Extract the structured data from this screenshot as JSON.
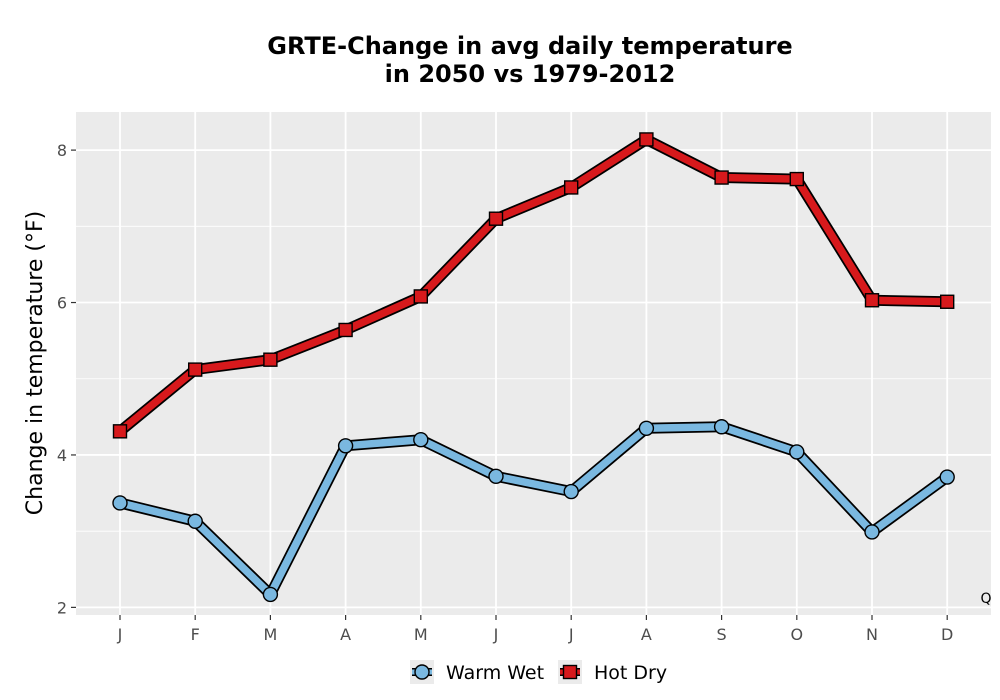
{
  "chart_data": {
    "type": "line",
    "title": "GRTE-Change in avg daily temperature",
    "subtitle": "in 2050 vs 1979-2012",
    "xlabel": "",
    "ylabel": "Change in temperature (°F)",
    "categories": [
      "J",
      "F",
      "M",
      "A",
      "M",
      "J",
      "J",
      "A",
      "S",
      "O",
      "N",
      "D"
    ],
    "ylim": [
      1.9,
      8.5
    ],
    "yticks": [
      2,
      4,
      6,
      8
    ],
    "grid": true,
    "legend_position": "bottom",
    "corner_label": "Q",
    "series": [
      {
        "name": "Warm Wet",
        "marker": "circle",
        "color": "#7ab8e0",
        "values": [
          3.37,
          3.13,
          2.17,
          4.12,
          4.2,
          3.72,
          3.52,
          4.35,
          4.37,
          4.04,
          2.99,
          3.71
        ]
      },
      {
        "name": "Hot Dry",
        "marker": "square",
        "color": "#d7191c",
        "values": [
          4.31,
          5.12,
          5.25,
          5.64,
          6.08,
          7.1,
          7.51,
          8.14,
          7.64,
          7.62,
          6.03,
          6.01
        ]
      }
    ],
    "colors": {
      "panel_background": "#ebebeb",
      "grid_line": "#ffffff",
      "outline": "#000000"
    }
  }
}
